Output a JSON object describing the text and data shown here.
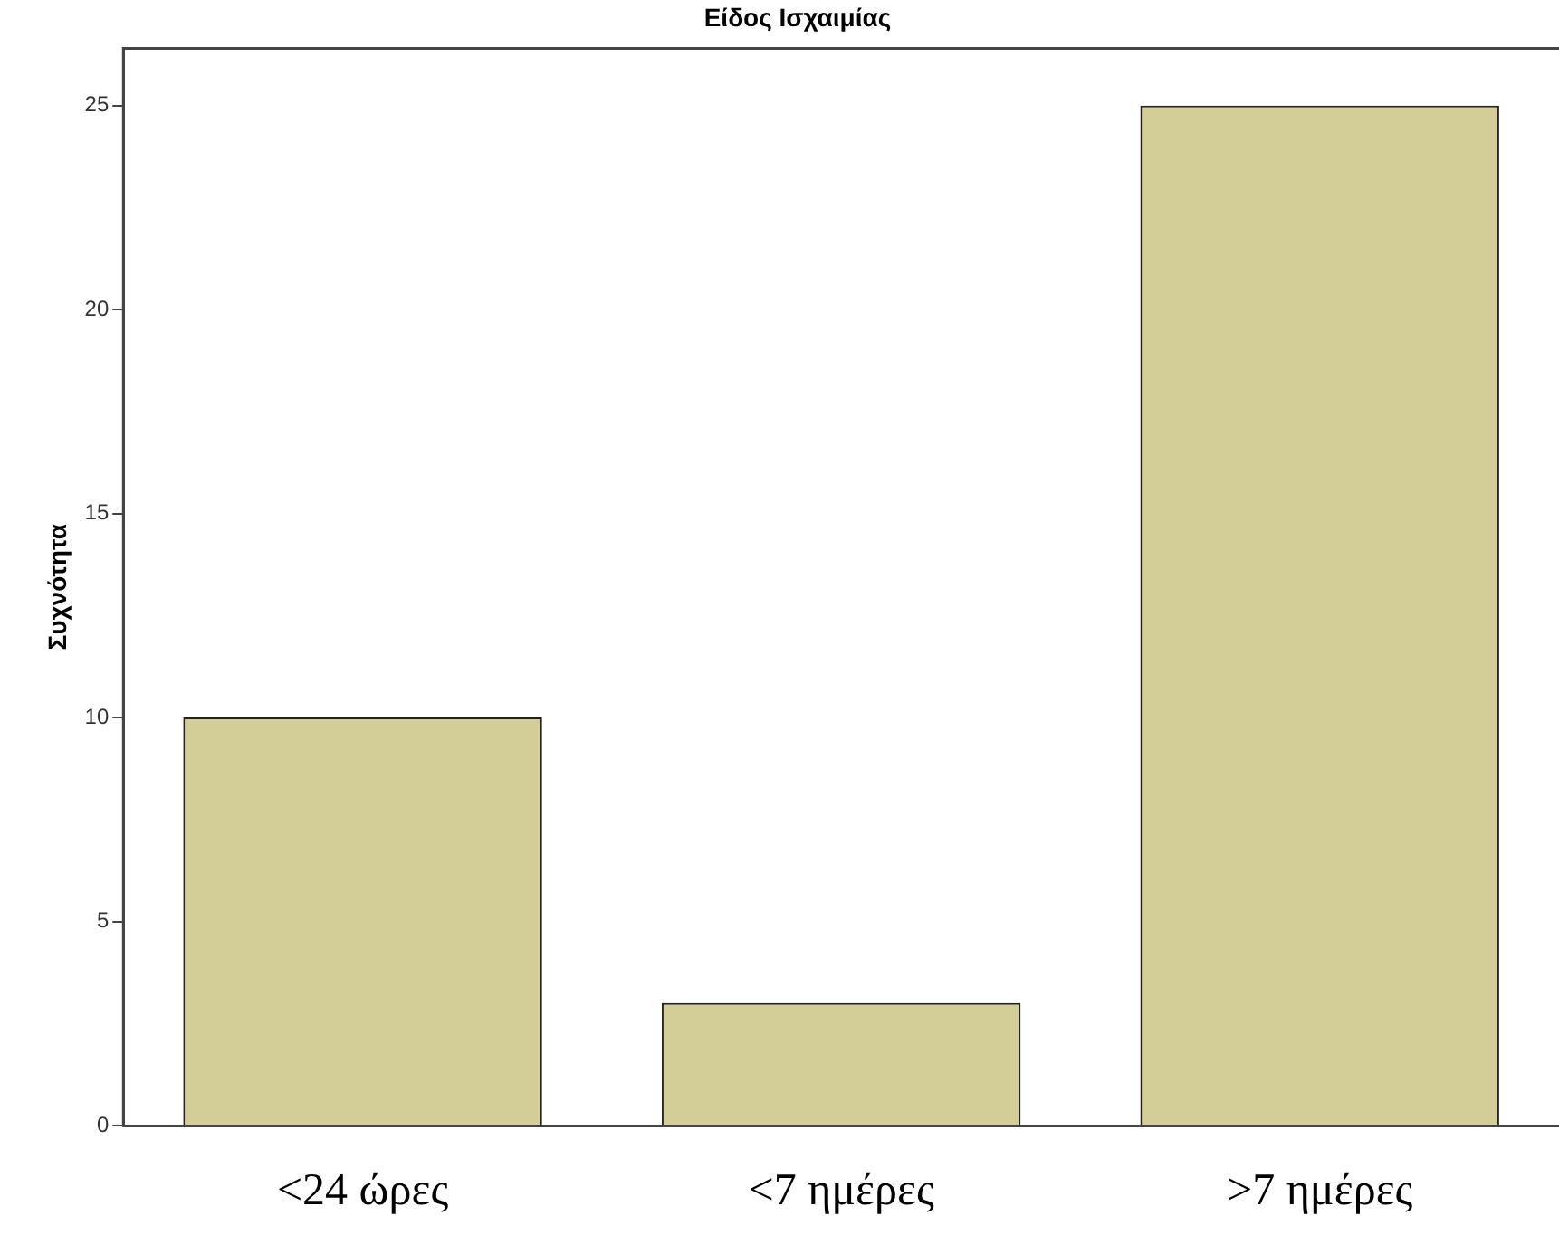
{
  "chart_data": {
    "type": "bar",
    "title": "Είδος Ισχαιμίας",
    "ylabel": "Συχνότητα",
    "categories": [
      "<24 ώρες",
      "<7 ημέρες",
      ">7 ημέρες"
    ],
    "values": [
      10,
      3,
      25
    ],
    "color": "#d3ce97",
    "ylim": [
      0,
      26.4
    ],
    "yticks": [
      0,
      5,
      10,
      15,
      20,
      25
    ],
    "grid": false,
    "legend": false
  }
}
